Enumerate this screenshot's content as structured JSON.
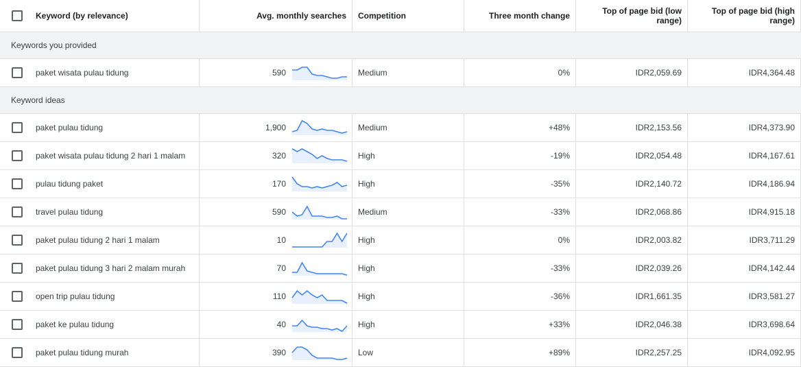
{
  "header": {
    "columns": [
      "Keyword (by relevance)",
      "Avg. monthly searches",
      "Competition",
      "Three month change",
      "Top of page bid (low range)",
      "Top of page bid (high range)"
    ]
  },
  "sections": [
    {
      "title": "Keywords you provided",
      "rows": [
        {
          "keyword": "paket wisata pulau tidung",
          "searches": "590",
          "trend": [
            7,
            7,
            9,
            9,
            4,
            3,
            3,
            2,
            1,
            1,
            2,
            2
          ],
          "competition": "Medium",
          "change": "0%",
          "low": "IDR2,059.69",
          "high": "IDR4,364.48"
        }
      ]
    },
    {
      "title": "Keyword ideas",
      "rows": [
        {
          "keyword": "paket pulau tidung",
          "searches": "1,900",
          "trend": [
            2,
            3,
            10,
            8,
            4,
            3,
            4,
            3,
            3,
            2,
            1,
            2
          ],
          "competition": "Medium",
          "change": "+48%",
          "low": "IDR2,153.56",
          "high": "IDR4,373.90"
        },
        {
          "keyword": "paket wisata pulau tidung 2 hari 1 malam",
          "searches": "320",
          "trend": [
            10,
            8,
            10,
            8,
            6,
            3,
            5,
            3,
            2,
            2,
            2,
            1
          ],
          "competition": "High",
          "change": "-19%",
          "low": "IDR2,054.48",
          "high": "IDR4,167.61"
        },
        {
          "keyword": "pulau tidung paket",
          "searches": "170",
          "trend": [
            10,
            5,
            3,
            3,
            2,
            3,
            2,
            3,
            4,
            6,
            3,
            4
          ],
          "competition": "High",
          "change": "-35%",
          "low": "IDR2,140.72",
          "high": "IDR4,186.94"
        },
        {
          "keyword": "travel pulau tidung",
          "searches": "590",
          "trend": [
            5,
            2,
            3,
            9,
            2,
            2,
            2,
            1,
            1,
            2,
            0,
            0
          ],
          "competition": "Medium",
          "change": "-33%",
          "low": "IDR2,068.86",
          "high": "IDR4,915.18"
        },
        {
          "keyword": "paket pulau tidung 2 hari 1 malam",
          "searches": "10",
          "trend": [
            0,
            0,
            0,
            0,
            0,
            0,
            0,
            4,
            4,
            10,
            4,
            10
          ],
          "competition": "High",
          "change": "0%",
          "low": "IDR2,003.82",
          "high": "IDR3,711.29"
        },
        {
          "keyword": "paket pulau tidung 3 hari 2 malam murah",
          "searches": "70",
          "trend": [
            2,
            2,
            9,
            3,
            2,
            1,
            1,
            1,
            1,
            1,
            1,
            0
          ],
          "competition": "High",
          "change": "-33%",
          "low": "IDR2,039.26",
          "high": "IDR4,142.44"
        },
        {
          "keyword": "open trip pulau tidung",
          "searches": "110",
          "trend": [
            4,
            9,
            6,
            9,
            6,
            4,
            6,
            2,
            2,
            2,
            2,
            0
          ],
          "competition": "High",
          "change": "-36%",
          "low": "IDR1,661.35",
          "high": "IDR3,581.27"
        },
        {
          "keyword": "paket ke pulau tidung",
          "searches": "40",
          "trend": [
            4,
            4,
            8,
            4,
            3,
            3,
            2,
            2,
            1,
            2,
            0,
            4
          ],
          "competition": "High",
          "change": "+33%",
          "low": "IDR2,046.38",
          "high": "IDR3,698.64"
        },
        {
          "keyword": "paket pulau tidung murah",
          "searches": "390",
          "trend": [
            5,
            9,
            9,
            7,
            3,
            1,
            1,
            1,
            1,
            0,
            0,
            1
          ],
          "competition": "Low",
          "change": "+89%",
          "low": "IDR2,257.25",
          "high": "IDR4,092.95"
        }
      ]
    }
  ]
}
